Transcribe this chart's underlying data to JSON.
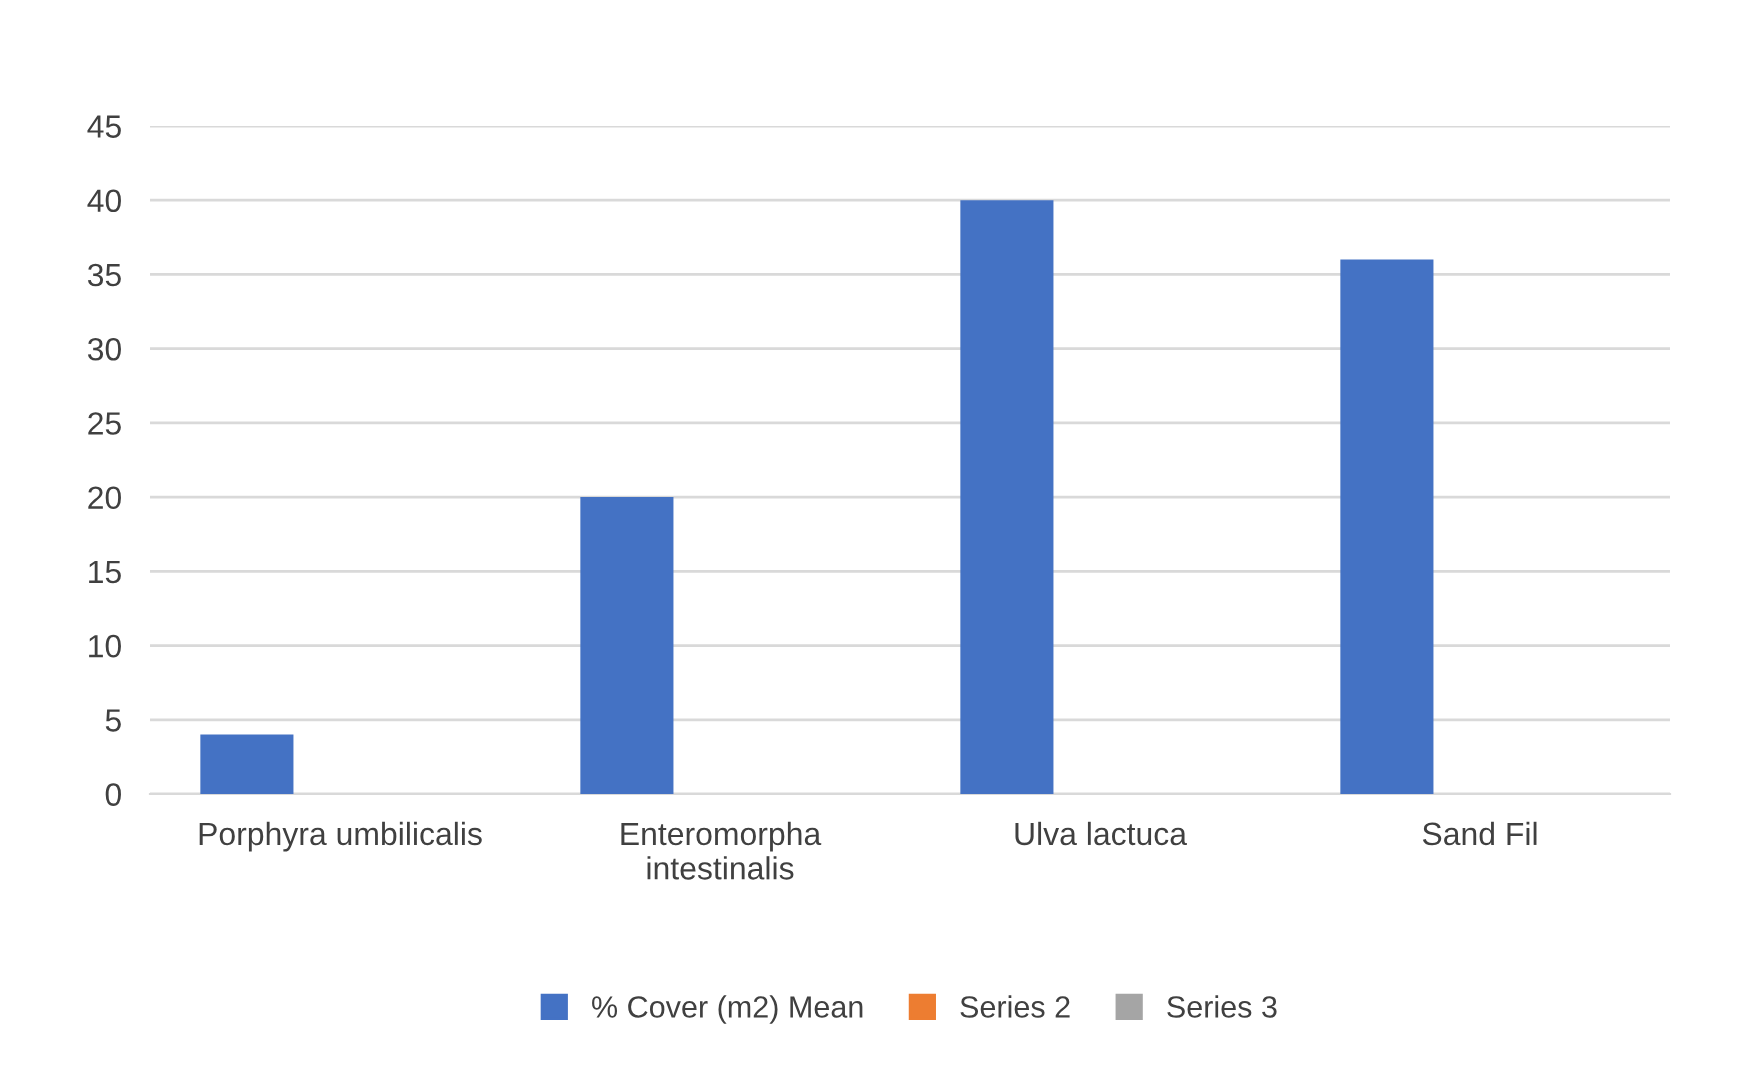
{
  "chart_data": {
    "type": "bar",
    "categories": [
      "Porphyra umbilicalis",
      "Enteromorpha intestinalis",
      "Ulva lactuca",
      "Sand Fil"
    ],
    "series": [
      {
        "name": "% Cover (m2) Mean",
        "color": "#4472c4",
        "values": [
          4,
          20,
          40,
          36
        ]
      },
      {
        "name": "Series 2",
        "color": "#ed7d31",
        "values": [
          null,
          null,
          null,
          null
        ]
      },
      {
        "name": "Series 3",
        "color": "#a5a5a5",
        "values": [
          null,
          null,
          null,
          null
        ]
      }
    ],
    "ylim": [
      0,
      45
    ],
    "yticks": [
      0,
      5,
      10,
      15,
      20,
      25,
      30,
      35,
      40,
      45
    ],
    "grid": "y",
    "legend": "bottom"
  }
}
